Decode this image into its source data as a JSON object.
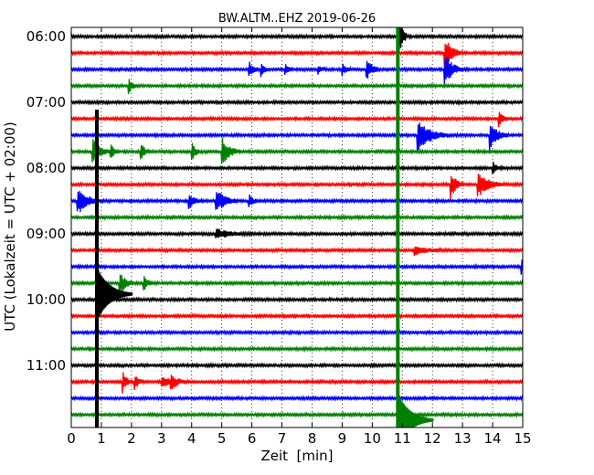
{
  "chart_data": {
    "type": "line",
    "title": "BW.ALTM..EHZ 2019-06-26",
    "xlabel": "Zeit  [min]",
    "ylabel": "UTC (Lokalzeit = UTC + 02:00)",
    "xlim": [
      0,
      15
    ],
    "x_ticks": [
      "0",
      "1",
      "2",
      "3",
      "4",
      "5",
      "6",
      "7",
      "8",
      "9",
      "10",
      "11",
      "12",
      "13",
      "14",
      "15"
    ],
    "y_ticks": [
      "06:00",
      "07:00",
      "08:00",
      "09:00",
      "10:00",
      "11:00"
    ],
    "start_time": "06:00",
    "trace_interval_min": 15,
    "grid": "vertical-dotted",
    "trace_colors": [
      "#000000",
      "#ff0000",
      "#0000ff",
      "#008000"
    ],
    "traces": [
      {
        "time": "06:00",
        "color": "#000000",
        "events": [
          {
            "t": 10.85,
            "amp": 2.0,
            "dur": 0.1
          }
        ]
      },
      {
        "time": "06:15",
        "color": "#ff0000",
        "events": [
          {
            "t": 12.4,
            "amp": 1.0,
            "dur": 0.2
          }
        ]
      },
      {
        "time": "06:30",
        "color": "#0000ff",
        "events": [
          {
            "t": 5.9,
            "amp": 0.5,
            "dur": 0.1
          },
          {
            "t": 6.3,
            "amp": 0.4,
            "dur": 0.1
          },
          {
            "t": 7.1,
            "amp": 0.3,
            "dur": 0.1
          },
          {
            "t": 8.2,
            "amp": 0.3,
            "dur": 0.1
          },
          {
            "t": 9.0,
            "amp": 0.35,
            "dur": 0.1
          },
          {
            "t": 9.8,
            "amp": 0.7,
            "dur": 0.15
          },
          {
            "t": 12.4,
            "amp": 1.1,
            "dur": 0.2
          }
        ]
      },
      {
        "time": "06:45",
        "color": "#008000",
        "events": [
          {
            "t": 1.9,
            "amp": 0.5,
            "dur": 0.1
          }
        ]
      },
      {
        "time": "07:00",
        "color": "#000000",
        "events": []
      },
      {
        "time": "07:15",
        "color": "#ff0000",
        "events": [
          {
            "t": 14.2,
            "amp": 0.6,
            "dur": 0.1
          }
        ]
      },
      {
        "time": "07:30",
        "color": "#0000ff",
        "events": [
          {
            "t": 11.5,
            "amp": 1.0,
            "dur": 0.35
          },
          {
            "t": 13.9,
            "amp": 0.9,
            "dur": 0.2
          }
        ]
      },
      {
        "time": "07:45",
        "color": "#008000",
        "events": [
          {
            "t": 0.7,
            "amp": 0.9,
            "dur": 0.2
          },
          {
            "t": 1.3,
            "amp": 0.5,
            "dur": 0.1
          },
          {
            "t": 2.3,
            "amp": 0.6,
            "dur": 0.1
          },
          {
            "t": 4.0,
            "amp": 0.6,
            "dur": 0.1
          },
          {
            "t": 5.0,
            "amp": 0.9,
            "dur": 0.2
          }
        ]
      },
      {
        "time": "08:00",
        "color": "#000000",
        "events": [
          {
            "t": 14.0,
            "amp": 0.4,
            "dur": 0.1
          }
        ]
      },
      {
        "time": "08:15",
        "color": "#ff0000",
        "events": [
          {
            "t": 12.6,
            "amp": 0.9,
            "dur": 0.15
          },
          {
            "t": 13.5,
            "amp": 0.8,
            "dur": 0.3
          }
        ]
      },
      {
        "time": "08:30",
        "color": "#0000ff",
        "events": [
          {
            "t": 0.2,
            "amp": 0.8,
            "dur": 0.3
          },
          {
            "t": 3.9,
            "amp": 0.5,
            "dur": 0.15
          },
          {
            "t": 4.8,
            "amp": 0.8,
            "dur": 0.25
          },
          {
            "t": 5.9,
            "amp": 0.4,
            "dur": 0.1
          }
        ]
      },
      {
        "time": "08:45",
        "color": "#008000",
        "events": []
      },
      {
        "time": "09:00",
        "color": "#000000",
        "events": [
          {
            "t": 4.8,
            "amp": 0.3,
            "dur": 0.4
          }
        ]
      },
      {
        "time": "09:15",
        "color": "#ff0000",
        "events": [
          {
            "t": 11.4,
            "amp": 0.3,
            "dur": 0.3
          }
        ]
      },
      {
        "time": "09:30",
        "color": "#0000ff",
        "events": [
          {
            "t": 14.95,
            "amp": 0.6,
            "dur": 0.05
          }
        ]
      },
      {
        "time": "09:45",
        "color": "#008000",
        "events": [
          {
            "t": 1.6,
            "amp": 0.8,
            "dur": 0.15
          },
          {
            "t": 2.4,
            "amp": 0.6,
            "dur": 0.1
          }
        ]
      },
      {
        "time": "10:00",
        "color": "#000000",
        "events": []
      },
      {
        "time": "10:15",
        "color": "#ff0000",
        "events": []
      },
      {
        "time": "10:30",
        "color": "#0000ff",
        "events": []
      },
      {
        "time": "10:45",
        "color": "#008000",
        "events": []
      },
      {
        "time": "11:00",
        "color": "#000000",
        "events": []
      },
      {
        "time": "11:15",
        "color": "#ff0000",
        "events": [
          {
            "t": 1.7,
            "amp": 0.7,
            "dur": 0.1
          },
          {
            "t": 2.1,
            "amp": 0.5,
            "dur": 0.1
          },
          {
            "t": 3.0,
            "amp": 0.4,
            "dur": 0.2
          },
          {
            "t": 3.3,
            "amp": 0.4,
            "dur": 0.2
          }
        ]
      },
      {
        "time": "11:30",
        "color": "#0000ff",
        "events": []
      },
      {
        "time": "11:45",
        "color": "#008000",
        "events": []
      }
    ],
    "large_events": [
      {
        "t": 0.85,
        "from": "07:15",
        "to": "12:00",
        "peak": "09:55",
        "color": "#000000"
      },
      {
        "t": 10.85,
        "from": "06:00",
        "to": "12:00",
        "peak": "11:50",
        "color": "#008000"
      }
    ]
  }
}
